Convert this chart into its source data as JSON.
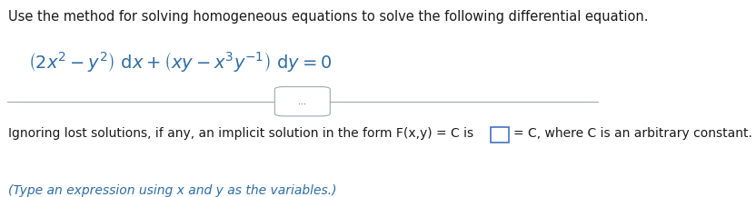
{
  "bg_color": "#ffffff",
  "text_color_dark": "#1a1a1a",
  "text_color_blue": "#2e6da4",
  "line_color": "#a0a8b0",
  "title_text": "Use the method for solving homogeneous equations to solve the following differential equation.",
  "bottom_line1": "Ignoring lost solutions, if any, an implicit solution in the form F(x,y) = C is",
  "bottom_line2_suffix": "= C, where C is an arbitrary constant.",
  "bottom_line3": "(Type an expression using x and y as the variables.)",
  "divider_dots": "...",
  "figsize": [
    8.32,
    2.17
  ],
  "dpi": 100
}
